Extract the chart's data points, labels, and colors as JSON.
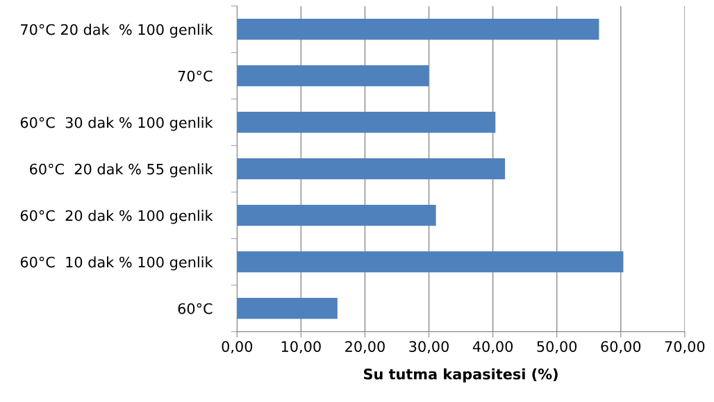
{
  "chart_data": {
    "type": "bar",
    "orientation": "horizontal",
    "xlabel": "Su tutma kapasitesi (%)",
    "categories": [
      "70°C 20 dak  % 100 genlik",
      "70°C",
      "60°C  30 dak % 100 genlik",
      "60°C  20 dak % 55 genlik",
      "60°C  20 dak % 100 genlik",
      "60°C  10 dak % 100 genlik",
      "60°C"
    ],
    "values": [
      56.6,
      30.0,
      40.4,
      41.9,
      31.1,
      60.4,
      15.7
    ],
    "color": "#4f81bd",
    "xlim": [
      0,
      70
    ],
    "xticks": [
      {
        "value": 0,
        "label": "0,00"
      },
      {
        "value": 10,
        "label": "10,00"
      },
      {
        "value": 20,
        "label": "20,00"
      },
      {
        "value": 30,
        "label": "30,00"
      },
      {
        "value": 40,
        "label": "40,00"
      },
      {
        "value": 50,
        "label": "50,00"
      },
      {
        "value": 60,
        "label": "60,00"
      },
      {
        "value": 70,
        "label": "70,00"
      }
    ],
    "grid": "x"
  }
}
